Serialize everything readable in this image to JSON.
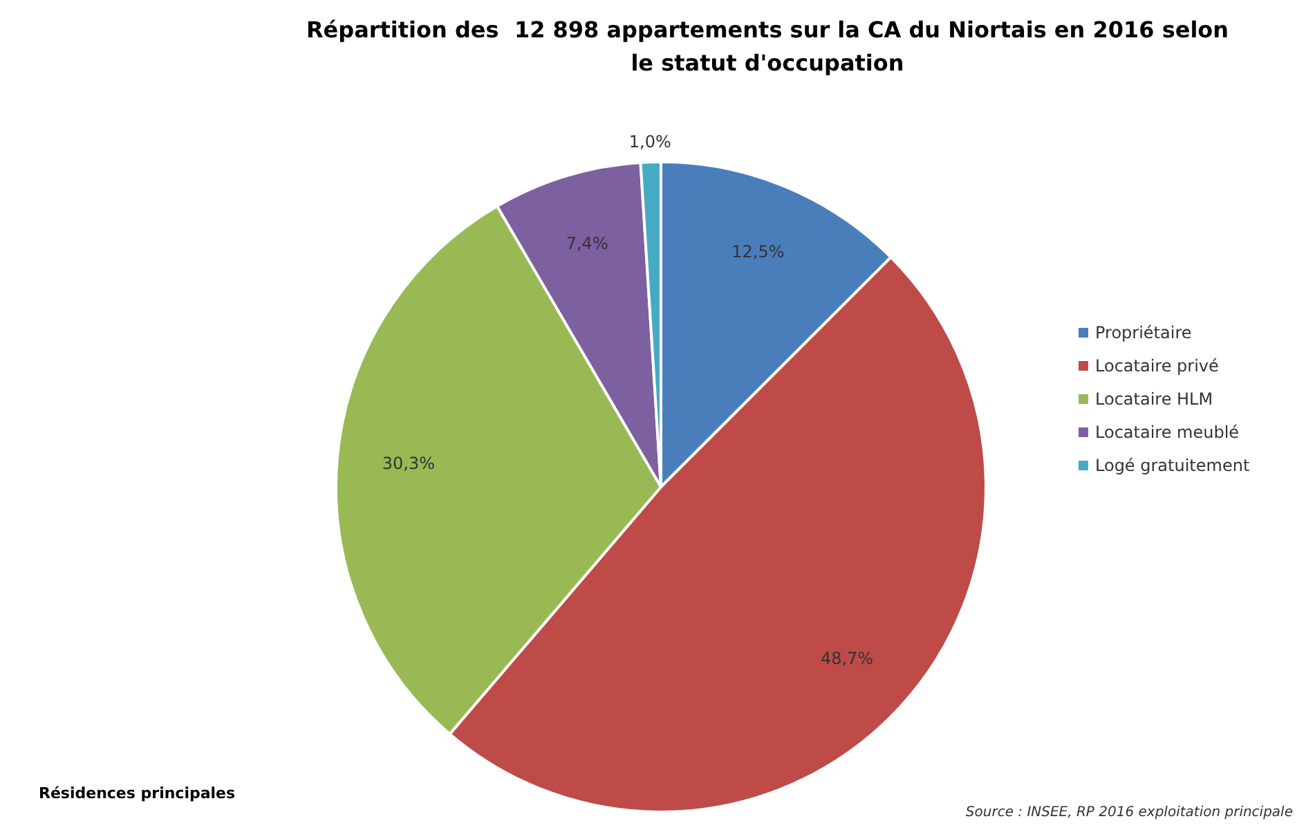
{
  "chart_data": {
    "type": "pie",
    "title": "Répartition des  12 898 appartements sur la CA du Niortais en 2016 selon le statut d'occupation",
    "categories": [
      "Propriétaire",
      "Locataire privé",
      "Locataire HLM",
      "Locataire meublé",
      "Logé gratuitement"
    ],
    "values": [
      12.5,
      48.7,
      30.3,
      7.4,
      1.0
    ],
    "colors": [
      "#4a7ebb",
      "#be4b48",
      "#98b954",
      "#7d60a0",
      "#46aac5"
    ],
    "value_labels": [
      "12,5%",
      "48,7%",
      "30,3%",
      "7,4%",
      "1,0%"
    ],
    "legend": "right",
    "annotations": [
      "Résidences principales",
      "Source : INSEE, RP 2016 exploitation principale"
    ]
  }
}
